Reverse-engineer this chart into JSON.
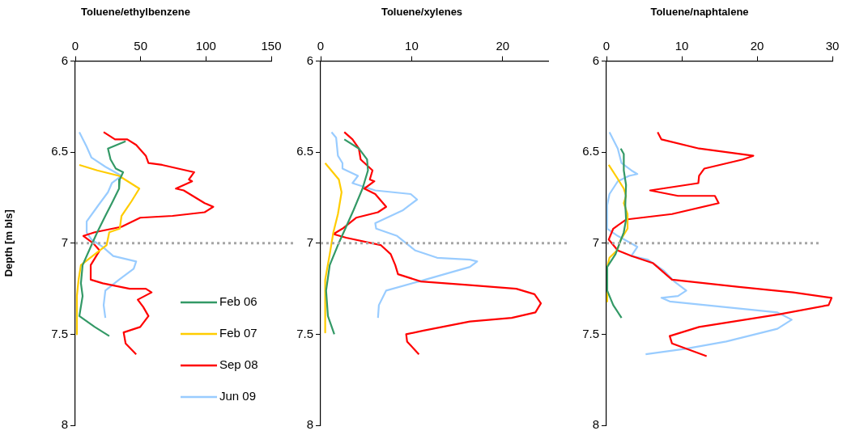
{
  "chart_data": [
    {
      "type": "line",
      "title": "Toluene/ethylbenzene",
      "ylabel": "Depth [m bls]",
      "xlim": [
        0,
        150
      ],
      "xticks": [
        0,
        50,
        100,
        150
      ],
      "ylim": [
        8,
        6
      ],
      "yticks": [
        6,
        6.5,
        7,
        7.5,
        8
      ],
      "grid": false,
      "marker": "none",
      "legend": "bottom right",
      "ref_lines": [
        {
          "axis": "y",
          "value": 7,
          "color": "#a6a6a6",
          "line_style": "dotted"
        }
      ],
      "series": [
        {
          "name": "Feb 06",
          "color": "#339966",
          "x": [
            38.5,
            25,
            27,
            31,
            36.6,
            34,
            33.5,
            28,
            23,
            16.8,
            11.8,
            5.6,
            4.3,
            5.6,
            3.1,
            14.9,
            26
          ],
          "values": [
            6.44,
            6.48,
            6.54,
            6.59,
            6.61,
            6.65,
            6.7,
            6.78,
            6.85,
            6.94,
            7.02,
            7.12,
            7.22,
            7.29,
            7.4,
            7.46,
            7.51
          ]
        },
        {
          "name": "Feb 07",
          "color": "#ffcc00",
          "x": [
            3.1,
            16.8,
            33.5,
            49,
            43,
            35.4,
            34,
            26,
            24,
            15,
            4.3,
            2.5,
            1.2,
            1.2
          ],
          "values": [
            6.57,
            6.6,
            6.63,
            6.7,
            6.77,
            6.85,
            6.92,
            6.94,
            7.01,
            7.06,
            7.12,
            7.2,
            7.29,
            7.5
          ]
        },
        {
          "name": "Sep 08",
          "color": "#ff0000",
          "x": [
            21.7,
            30.4,
            39.8,
            46.6,
            54,
            56,
            66.5,
            91,
            87,
            89.4,
            77,
            83,
            99,
            105.6,
            99,
            74.5,
            49.7,
            35.4,
            14.9,
            6.2,
            13.7,
            18.6,
            11.8,
            11.8,
            21,
            41.6,
            54,
            58.4,
            47.8,
            52,
            56,
            49.7,
            37,
            38.5,
            46.6
          ],
          "values": [
            6.39,
            6.43,
            6.43,
            6.46,
            6.52,
            6.56,
            6.57,
            6.61,
            6.65,
            6.66,
            6.7,
            6.71,
            6.78,
            6.8,
            6.83,
            6.85,
            6.86,
            6.91,
            6.94,
            6.96,
            7,
            7.04,
            7.12,
            7.2,
            7.22,
            7.25,
            7.25,
            7.27,
            7.31,
            7.35,
            7.4,
            7.46,
            7.49,
            7.55,
            7.61
          ]
        },
        {
          "name": "Jun 09",
          "color": "#99ccff",
          "x": [
            3.1,
            8.7,
            12.4,
            23,
            35.4,
            28,
            25,
            16.8,
            8.7,
            8.7,
            12.4,
            21,
            29,
            46.6,
            44.7,
            33.5,
            23,
            21.7,
            23
          ],
          "values": [
            6.39,
            6.47,
            6.53,
            6.58,
            6.63,
            6.67,
            6.72,
            6.8,
            6.88,
            6.94,
            6.98,
            7.02,
            7.07,
            7.1,
            7.14,
            7.2,
            7.26,
            7.34,
            7.41
          ]
        }
      ]
    },
    {
      "type": "line",
      "title": "Toluene/xylenes",
      "xlim": [
        0,
        25
      ],
      "xticks": [
        0,
        10,
        20
      ],
      "ylim": [
        8,
        6
      ],
      "yticks": [
        6,
        6.5,
        7,
        7.5,
        8
      ],
      "grid": false,
      "marker": "none",
      "ref_lines": [
        {
          "axis": "y",
          "value": 7,
          "color": "#a6a6a6",
          "line_style": "dotted"
        }
      ],
      "series": [
        {
          "color": "#339966",
          "x": [
            2.6,
            4.2,
            5.1,
            5.2,
            4.6,
            3.6,
            2.8,
            1.9,
            1.0,
            0.6,
            0.8,
            1.5
          ],
          "values": [
            6.43,
            6.48,
            6.54,
            6.6,
            6.7,
            6.82,
            6.91,
            7.01,
            7.12,
            7.26,
            7.4,
            7.5
          ]
        },
        {
          "color": "#ffcc00",
          "x": [
            0.5,
            2.0,
            2.3,
            1.9,
            1.4,
            1.0,
            0.5,
            0.5
          ],
          "values": [
            6.56,
            6.65,
            6.72,
            6.84,
            6.94,
            7.06,
            7.2,
            7.49
          ]
        },
        {
          "color": "#ff0000",
          "x": [
            2.6,
            3.5,
            4.2,
            4.4,
            5.7,
            5.4,
            5.9,
            4.8,
            6.0,
            7.2,
            6.3,
            3.9,
            2.4,
            1.4,
            2.8,
            6.6,
            7.7,
            8.2,
            8.5,
            11.0,
            16.4,
            21.5,
            23.5,
            24.2,
            23.6,
            21,
            16.4,
            11.3,
            9.4,
            9.5,
            10.8
          ],
          "values": [
            6.39,
            6.43,
            6.48,
            6.54,
            6.6,
            6.65,
            6.66,
            6.7,
            6.73,
            6.8,
            6.83,
            6.86,
            6.92,
            6.95,
            6.97,
            7.01,
            7.06,
            7.12,
            7.17,
            7.21,
            7.23,
            7.25,
            7.28,
            7.33,
            7.38,
            7.41,
            7.43,
            7.48,
            7.5,
            7.54,
            7.61
          ]
        },
        {
          "color": "#99ccff",
          "x": [
            1.2,
            1.7,
            1.9,
            2.4,
            2.4,
            4.1,
            3.5,
            6.0,
            9.9,
            10.6,
            9.0,
            6.0,
            6.1,
            8.4,
            10.4,
            12.8,
            16.4,
            17.2,
            16.4,
            10.8,
            7.2,
            6.4,
            6.3
          ],
          "values": [
            6.39,
            6.42,
            6.52,
            6.56,
            6.59,
            6.63,
            6.67,
            6.71,
            6.73,
            6.76,
            6.82,
            6.89,
            6.92,
            6.96,
            7.04,
            7.08,
            7.09,
            7.1,
            7.13,
            7.21,
            7.26,
            7.34,
            7.41
          ]
        }
      ]
    },
    {
      "type": "line",
      "title": "Toluene/naphtalene",
      "xlim": [
        0,
        30
      ],
      "xticks": [
        0,
        10,
        20,
        30
      ],
      "ylim": [
        8,
        6
      ],
      "yticks": [
        6,
        6.5,
        7,
        7.5,
        8
      ],
      "grid": false,
      "marker": "none",
      "ref_lines": [
        {
          "axis": "y",
          "value": 7,
          "color": "#a6a6a6",
          "line_style": "dotted"
        }
      ],
      "series": [
        {
          "color": "#339966",
          "x": [
            1.9,
            2.3,
            2.3,
            2.6,
            2.5,
            2.6,
            2.3,
            1.2,
            0.1,
            0.1,
            0.9,
            2.0
          ],
          "values": [
            6.48,
            6.51,
            6.6,
            6.68,
            6.79,
            6.87,
            6.94,
            7.06,
            7.13,
            7.26,
            7.34,
            7.41
          ]
        },
        {
          "color": "#ffcc00",
          "x": [
            0.3,
            1.4,
            2.3,
            2.6,
            2.3,
            2.8,
            2.8,
            1.9,
            1.4,
            0.4,
            0.1,
            0.1
          ],
          "values": [
            6.57,
            6.64,
            6.7,
            6.74,
            6.78,
            6.84,
            6.92,
            6.98,
            7.04,
            7.08,
            7.13,
            7.32
          ]
        },
        {
          "color": "#ff0000",
          "x": [
            6.8,
            7.3,
            12.3,
            19.5,
            18.1,
            13.0,
            12.3,
            12.2,
            5.8,
            9.5,
            14.4,
            14.9,
            8.7,
            2.6,
            0.9,
            0.3,
            1.5,
            3.3,
            6.2,
            8.7,
            17.6,
            24.8,
            29.9,
            29.5,
            23.0,
            12.3,
            8.4,
            8.7,
            13.3
          ],
          "values": [
            6.39,
            6.43,
            6.48,
            6.52,
            6.54,
            6.59,
            6.63,
            6.67,
            6.71,
            6.74,
            6.74,
            6.78,
            6.84,
            6.87,
            6.92,
            6.98,
            7.04,
            7.07,
            7.11,
            7.2,
            7.24,
            7.27,
            7.3,
            7.34,
            7.39,
            7.46,
            7.51,
            7.55,
            7.62
          ]
        },
        {
          "color": "#99ccff",
          "x": [
            0.4,
            1.5,
            2.0,
            3.3,
            4.1,
            3.0,
            1.5,
            0.4,
            0.1,
            0.1,
            1.5,
            4.1,
            3.3,
            5.5,
            7.6,
            9.0,
            10.6,
            9.5,
            7.3,
            8.4,
            22.7,
            24.6,
            22.7,
            15.9,
            10.5,
            5.2
          ],
          "values": [
            6.39,
            6.48,
            6.56,
            6.6,
            6.62,
            6.63,
            6.66,
            6.73,
            6.79,
            6.92,
            6.96,
            7.02,
            7.07,
            7.09,
            7.15,
            7.21,
            7.26,
            7.29,
            7.3,
            7.32,
            7.38,
            7.42,
            7.47,
            7.54,
            7.58,
            7.61
          ]
        }
      ]
    }
  ]
}
